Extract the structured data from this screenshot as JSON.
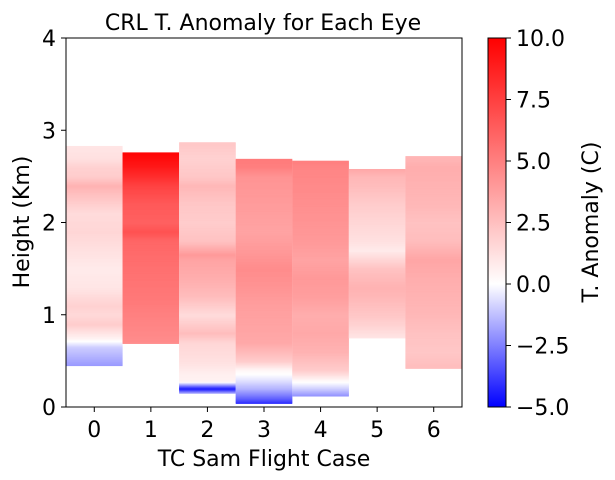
{
  "chart_data": {
    "type": "heatmap",
    "title": "CRL T. Anomaly for Each Eye",
    "xlabel": "TC Sam Flight Case",
    "ylabel": "Height (Km)",
    "xlim": [
      -0.5,
      6.5
    ],
    "ylim": [
      0,
      4
    ],
    "x_ticks": [
      0,
      1,
      2,
      3,
      4,
      5,
      6
    ],
    "y_ticks": [
      0,
      1,
      2,
      3,
      4
    ],
    "grid": false,
    "colorbar": {
      "label": "T. Anomaly (C)",
      "colormap": "bwr",
      "range": [
        -5.0,
        10.0
      ],
      "center": 0.0,
      "ticks": [
        -5.0,
        -2.5,
        0.0,
        2.5,
        5.0,
        7.5,
        10.0
      ],
      "tick_labels": [
        "−5.0",
        "−2.5",
        "0.0",
        "2.5",
        "5.0",
        "7.5",
        "10.0"
      ],
      "colors": {
        "min": "#0000ff",
        "center": "#ffffff",
        "max": "#ff0000"
      }
    },
    "columns": [
      {
        "x": 0,
        "profile": [
          [
            0.45,
            -2.0
          ],
          [
            0.55,
            -1.5
          ],
          [
            0.65,
            -1.0
          ],
          [
            0.75,
            0.5
          ],
          [
            0.9,
            2.0
          ],
          [
            1.0,
            1.5
          ],
          [
            1.1,
            1.8
          ],
          [
            1.3,
            1.0
          ],
          [
            1.5,
            0.8
          ],
          [
            1.7,
            1.2
          ],
          [
            1.9,
            1.6
          ],
          [
            2.1,
            1.4
          ],
          [
            2.3,
            2.4
          ],
          [
            2.4,
            3.0
          ],
          [
            2.5,
            2.0
          ],
          [
            2.6,
            1.8
          ],
          [
            2.7,
            1.2
          ],
          [
            2.83,
            1.0
          ]
        ]
      },
      {
        "x": 1,
        "profile": [
          [
            0.69,
            4.5
          ],
          [
            0.9,
            4.8
          ],
          [
            1.2,
            5.3
          ],
          [
            1.5,
            5.6
          ],
          [
            1.8,
            6.0
          ],
          [
            1.9,
            6.8
          ],
          [
            2.0,
            6.2
          ],
          [
            2.2,
            6.5
          ],
          [
            2.4,
            7.4
          ],
          [
            2.5,
            8.2
          ],
          [
            2.6,
            9.0
          ],
          [
            2.76,
            9.8
          ]
        ]
      },
      {
        "x": 2,
        "profile": [
          [
            0.15,
            -1.5
          ],
          [
            0.2,
            -4.5
          ],
          [
            0.22,
            -3.5
          ],
          [
            0.28,
            0.5
          ],
          [
            0.35,
            0.6
          ],
          [
            0.5,
            1.2
          ],
          [
            0.7,
            1.6
          ],
          [
            0.8,
            2.6
          ],
          [
            0.9,
            2.0
          ],
          [
            1.0,
            1.4
          ],
          [
            1.2,
            2.6
          ],
          [
            1.4,
            3.2
          ],
          [
            1.6,
            3.6
          ],
          [
            1.65,
            4.0
          ],
          [
            1.8,
            2.4
          ],
          [
            2.0,
            2.0
          ],
          [
            2.2,
            2.2
          ],
          [
            2.4,
            2.8
          ],
          [
            2.5,
            2.2
          ],
          [
            2.7,
            1.8
          ],
          [
            2.87,
            2.2
          ]
        ]
      },
      {
        "x": 3,
        "profile": [
          [
            0.04,
            -4.2
          ],
          [
            0.1,
            -3.0
          ],
          [
            0.2,
            -1.5
          ],
          [
            0.3,
            -0.5
          ],
          [
            0.4,
            0.3
          ],
          [
            0.5,
            2.0
          ],
          [
            0.7,
            3.4
          ],
          [
            0.9,
            3.6
          ],
          [
            1.1,
            3.8
          ],
          [
            1.3,
            4.2
          ],
          [
            1.5,
            4.5
          ],
          [
            1.7,
            4.0
          ],
          [
            1.9,
            3.6
          ],
          [
            2.1,
            3.8
          ],
          [
            2.3,
            4.0
          ],
          [
            2.5,
            4.2
          ],
          [
            2.6,
            5.0
          ],
          [
            2.69,
            5.2
          ]
        ]
      },
      {
        "x": 4,
        "profile": [
          [
            0.12,
            -2.2
          ],
          [
            0.2,
            -1.0
          ],
          [
            0.3,
            0.4
          ],
          [
            0.4,
            2.0
          ],
          [
            0.6,
            3.0
          ],
          [
            0.8,
            3.4
          ],
          [
            1.0,
            3.2
          ],
          [
            1.2,
            3.8
          ],
          [
            1.4,
            4.0
          ],
          [
            1.6,
            3.6
          ],
          [
            1.8,
            4.0
          ],
          [
            2.0,
            4.2
          ],
          [
            2.2,
            4.4
          ],
          [
            2.4,
            4.6
          ],
          [
            2.6,
            4.8
          ],
          [
            2.67,
            5.0
          ]
        ]
      },
      {
        "x": 5,
        "profile": [
          [
            0.75,
            1.0
          ],
          [
            0.9,
            1.8
          ],
          [
            1.0,
            2.2
          ],
          [
            1.2,
            2.8
          ],
          [
            1.3,
            3.0
          ],
          [
            1.5,
            2.4
          ],
          [
            1.7,
            0.8
          ],
          [
            1.8,
            1.2
          ],
          [
            2.0,
            1.6
          ],
          [
            2.2,
            2.0
          ],
          [
            2.4,
            2.6
          ],
          [
            2.5,
            2.8
          ],
          [
            2.58,
            3.4
          ]
        ]
      },
      {
        "x": 6,
        "profile": [
          [
            0.42,
            2.6
          ],
          [
            0.6,
            2.2
          ],
          [
            0.8,
            2.4
          ],
          [
            1.0,
            2.8
          ],
          [
            1.2,
            3.0
          ],
          [
            1.4,
            3.2
          ],
          [
            1.6,
            3.5
          ],
          [
            1.8,
            2.6
          ],
          [
            2.0,
            2.4
          ],
          [
            2.2,
            2.8
          ],
          [
            2.4,
            3.0
          ],
          [
            2.6,
            3.2
          ],
          [
            2.72,
            2.8
          ]
        ]
      }
    ]
  }
}
